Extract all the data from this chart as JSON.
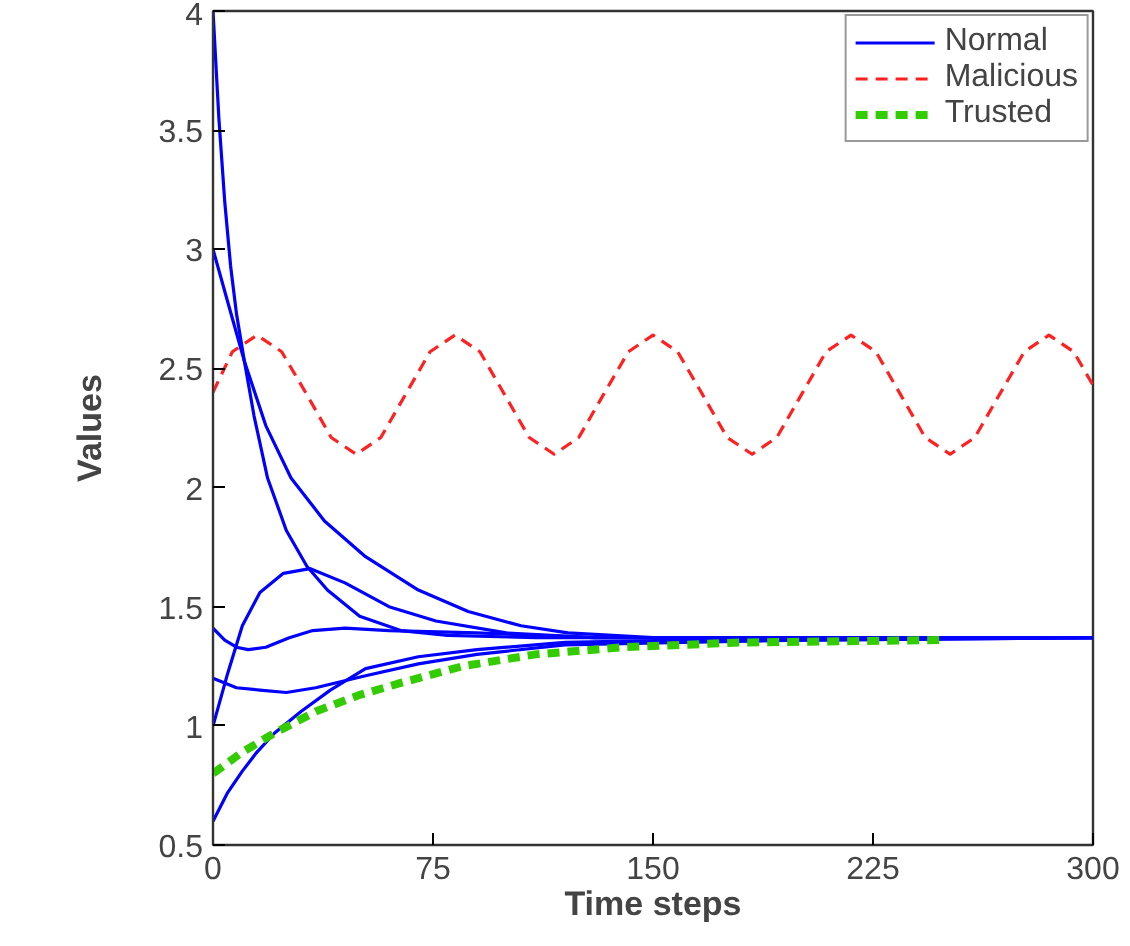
{
  "chart_data": {
    "type": "line",
    "xlabel": "Time steps",
    "ylabel": "Values",
    "xlim": [
      0,
      300
    ],
    "ylim": [
      0.5,
      4
    ],
    "xticks": [
      0,
      75,
      150,
      225,
      300
    ],
    "yticks": [
      0.5,
      1,
      1.5,
      2,
      2.5,
      3,
      3.5,
      4
    ],
    "grid": false,
    "legend": "top right",
    "marker": "none",
    "series": [
      {
        "name": "Normal",
        "color": "#0000ff",
        "line_style": "solid",
        "x": [
          0,
          2,
          4,
          6,
          8,
          10.7,
          14,
          18.6,
          25,
          32,
          39,
          50,
          64,
          80,
          110,
          150,
          300
        ],
        "values": [
          4,
          3.55,
          3.2,
          2.93,
          2.73,
          2.53,
          2.3,
          2.04,
          1.82,
          1.67,
          1.57,
          1.46,
          1.4,
          1.38,
          1.37,
          1.37,
          1.37
        ]
      },
      {
        "color": "#0000ff",
        "line_style": "solid",
        "x": [
          0,
          5,
          10.7,
          18,
          26.6,
          38,
          52,
          70,
          87,
          105,
          121,
          150,
          200,
          300
        ],
        "values": [
          3,
          2.78,
          2.53,
          2.26,
          2.04,
          1.86,
          1.71,
          1.57,
          1.48,
          1.42,
          1.39,
          1.37,
          1.37,
          1.37
        ]
      },
      {
        "color": "#0000ff",
        "line_style": "solid",
        "x": [
          0,
          5,
          10,
          16,
          24,
          33,
          45,
          60,
          76,
          100,
          130,
          300
        ],
        "values": [
          1,
          1.22,
          1.42,
          1.56,
          1.64,
          1.66,
          1.6,
          1.5,
          1.44,
          1.39,
          1.37,
          1.37
        ]
      },
      {
        "color": "#0000ff",
        "line_style": "solid",
        "x": [
          0,
          4,
          8,
          12,
          18,
          26,
          34,
          45,
          60,
          90,
          130,
          300
        ],
        "values": [
          1.41,
          1.36,
          1.33,
          1.32,
          1.33,
          1.37,
          1.4,
          1.41,
          1.4,
          1.39,
          1.37,
          1.37
        ]
      },
      {
        "color": "#0000ff",
        "line_style": "solid",
        "x": [
          0,
          8,
          16,
          25,
          35,
          52,
          70,
          90,
          120,
          160,
          200,
          300
        ],
        "values": [
          1.2,
          1.16,
          1.15,
          1.14,
          1.16,
          1.21,
          1.26,
          1.3,
          1.34,
          1.35,
          1.36,
          1.37
        ]
      },
      {
        "color": "#0000ff",
        "line_style": "solid",
        "x": [
          0,
          5,
          10,
          15,
          21,
          30,
          40,
          52,
          70,
          90,
          120,
          160,
          200,
          300
        ],
        "values": [
          0.6,
          0.72,
          0.81,
          0.89,
          0.97,
          1.06,
          1.15,
          1.24,
          1.29,
          1.32,
          1.35,
          1.36,
          1.36,
          1.37
        ]
      },
      {
        "name": "Malicious",
        "color": "#ff2020",
        "line_style": "dashed",
        "x": [
          0,
          6.6,
          15,
          23.4,
          32,
          40.3,
          48.8,
          57.2,
          65.6,
          74,
          82.5,
          91,
          99.4,
          107.8,
          116.3,
          124.7,
          133.1,
          141.6,
          150,
          158.4,
          166.9,
          175.3,
          183.8,
          192.2,
          200.6,
          209,
          217.5,
          226,
          234.4,
          242.8,
          251.3,
          259.7,
          268.1,
          276.6,
          285,
          293.4,
          300
        ],
        "values": [
          2.4,
          2.57,
          2.64,
          2.57,
          2.39,
          2.21,
          2.14,
          2.21,
          2.39,
          2.57,
          2.64,
          2.57,
          2.39,
          2.21,
          2.14,
          2.21,
          2.39,
          2.57,
          2.64,
          2.57,
          2.39,
          2.21,
          2.14,
          2.21,
          2.39,
          2.57,
          2.64,
          2.57,
          2.39,
          2.21,
          2.14,
          2.21,
          2.39,
          2.57,
          2.64,
          2.57,
          2.43
        ]
      },
      {
        "name": "Trusted",
        "color": "#33cc00",
        "line_style": "dashed",
        "x": [
          0,
          10,
          21,
          35,
          50,
          64,
          85,
          110,
          140,
          180,
          248
        ],
        "values": [
          0.8,
          0.89,
          0.97,
          1.06,
          1.13,
          1.18,
          1.25,
          1.3,
          1.33,
          1.35,
          1.36
        ]
      }
    ]
  }
}
